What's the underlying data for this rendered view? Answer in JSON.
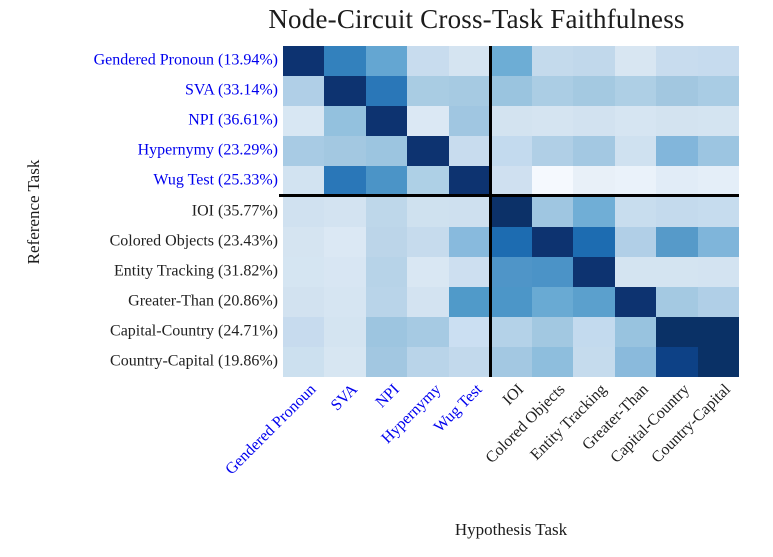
{
  "figure": {
    "title": "Node-Circuit Cross-Task Faithfulness",
    "xlabel": "Hypothesis Task",
    "ylabel": "Reference Task"
  },
  "colors": {
    "group_blue_label": "#0000ee",
    "group_black_label": "#212121",
    "divider": "#000000",
    "background": "#ffffff"
  },
  "chart_data": {
    "type": "heatmap",
    "colormap": "Blues",
    "title": "Node-Circuit Cross-Task Faithfulness",
    "xlabel": "Hypothesis Task",
    "ylabel": "Reference Task",
    "legend": "none",
    "dividers": {
      "after_row": 5,
      "after_col": 5
    },
    "x_categories": [
      {
        "label": "Gendered Pronoun",
        "color": "#0000ee"
      },
      {
        "label": "SVA",
        "color": "#0000ee"
      },
      {
        "label": "NPI",
        "color": "#0000ee"
      },
      {
        "label": "Hypernymy",
        "color": "#0000ee"
      },
      {
        "label": "Wug Test",
        "color": "#0000ee"
      },
      {
        "label": "IOI",
        "color": "#212121"
      },
      {
        "label": "Colored Objects",
        "color": "#212121"
      },
      {
        "label": "Entity Tracking",
        "color": "#212121"
      },
      {
        "label": "Greater-Than",
        "color": "#212121"
      },
      {
        "label": "Capital-Country",
        "color": "#212121"
      },
      {
        "label": "Country-Capital",
        "color": "#212121"
      }
    ],
    "y_categories": [
      {
        "label": "Gendered Pronoun (13.94%)",
        "color": "#0000ee",
        "reference_faithfulness_pct": 13.94
      },
      {
        "label": "SVA (33.14%)",
        "color": "#0000ee",
        "reference_faithfulness_pct": 33.14
      },
      {
        "label": "NPI (36.61%)",
        "color": "#0000ee",
        "reference_faithfulness_pct": 36.61
      },
      {
        "label": "Hypernymy (23.29%)",
        "color": "#0000ee",
        "reference_faithfulness_pct": 23.29
      },
      {
        "label": "Wug Test (25.33%)",
        "color": "#0000ee",
        "reference_faithfulness_pct": 25.33
      },
      {
        "label": "IOI (35.77%)",
        "color": "#212121",
        "reference_faithfulness_pct": 35.77
      },
      {
        "label": "Colored Objects (23.43%)",
        "color": "#212121",
        "reference_faithfulness_pct": 23.43
      },
      {
        "label": "Entity Tracking (31.82%)",
        "color": "#212121",
        "reference_faithfulness_pct": 31.82
      },
      {
        "label": "Greater-Than (20.86%)",
        "color": "#212121",
        "reference_faithfulness_pct": 20.86
      },
      {
        "label": "Capital-Country (24.71%)",
        "color": "#212121",
        "reference_faithfulness_pct": 24.71
      },
      {
        "label": "Country-Capital (19.86%)",
        "color": "#212121",
        "reference_faithfulness_pct": 19.86
      }
    ],
    "cell_colors": [
      [
        "#0d3371",
        "#3381bd",
        "#64a6d2",
        "#c8dcee",
        "#d5e4f1",
        "#6dadd5",
        "#c4daec",
        "#c1d8eb",
        "#d8e6f2",
        "#c8dcee",
        "#c6dbee"
      ],
      [
        "#b0cfe7",
        "#0d3370",
        "#2a77b8",
        "#a9cce3",
        "#a6cae2",
        "#9ac4df",
        "#abcde4",
        "#a4c9e1",
        "#aecfe5",
        "#a2c7e0",
        "#a9cce4"
      ],
      [
        "#d8e7f3",
        "#93c1de",
        "#0d3370",
        "#dbe8f4",
        "#a0c6e1",
        "#d3e3f0",
        "#d5e4f1",
        "#d2e2f0",
        "#d6e5f2",
        "#d3e3f0",
        "#d4e4f1"
      ],
      [
        "#a8cbe4",
        "#a3c8e1",
        "#9cc5e0",
        "#0d3370",
        "#c8dcee",
        "#c3daee",
        "#b0cfe6",
        "#a3c8e2",
        "#cfe1f0",
        "#82b6db",
        "#9cc5e1"
      ],
      [
        "#d2e3f1",
        "#2a77b8",
        "#4b94c7",
        "#aed0e6",
        "#0d3370",
        "#cfe0f0",
        "#f5f9fe",
        "#e8f0f8",
        "#eaf2fa",
        "#e1ecf7",
        "#e4eef8"
      ],
      [
        "#d0e1f0",
        "#d3e3f1",
        "#bed7ea",
        "#cfe1ef",
        "#cee0ef",
        "#0c3168",
        "#9fc6e1",
        "#70aed6",
        "#c8ddee",
        "#c4daed",
        "#c6dcee"
      ],
      [
        "#d5e4f1",
        "#dbe8f4",
        "#bcd5e9",
        "#c6dbed",
        "#88badd",
        "#1d6cb1",
        "#0d3370",
        "#1d6cb1",
        "#b1cfe7",
        "#569ac9",
        "#7fb5da"
      ],
      [
        "#d5e5f2",
        "#d8e6f3",
        "#b7d3e8",
        "#d9e7f3",
        "#cddff0",
        "#4f95c8",
        "#4b93c7",
        "#0d3370",
        "#d4e4f1",
        "#d4e4f1",
        "#d3e3f1"
      ],
      [
        "#d2e2f0",
        "#d6e5f2",
        "#b9d4e9",
        "#d3e3f1",
        "#509ac9",
        "#4c96c8",
        "#69aad3",
        "#5ba0cd",
        "#0d3370",
        "#a4c9e2",
        "#b0cfe7"
      ],
      [
        "#c7dbee",
        "#d4e4f1",
        "#9dc5e0",
        "#a6cae3",
        "#cbdff2",
        "#b4d2e8",
        "#a2c8e1",
        "#c3daee",
        "#98c3df",
        "#0a3166",
        "#0a3166"
      ],
      [
        "#cce0ef",
        "#d7e6f2",
        "#a2c7e1",
        "#b9d4e9",
        "#c2d9ec",
        "#a3c8e2",
        "#8ebedd",
        "#c5dbed",
        "#8abadc",
        "#0d4186",
        "#0a3166"
      ]
    ]
  }
}
